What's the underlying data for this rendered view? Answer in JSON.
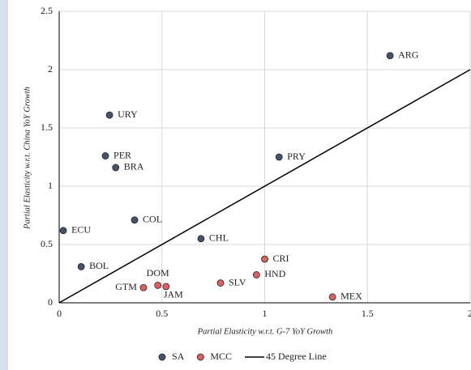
{
  "chart_data": {
    "type": "scatter",
    "xlabel": "Partial Elasticity w.r.t. G-7 YoY Growth",
    "ylabel": "Partial Elasticity w.r.t. China YoY Growth",
    "xlim": [
      0,
      2
    ],
    "ylim": [
      0,
      2.5
    ],
    "xticks": [
      0,
      0.5,
      1,
      1.5,
      2
    ],
    "yticks": [
      0,
      0.5,
      1,
      1.5,
      2,
      2.5
    ],
    "grid": true,
    "legend": "bottom",
    "series": [
      {
        "name": "SA",
        "color": "#44546a",
        "labels": [
          "ARG",
          "URY",
          "PER",
          "BRA",
          "PRY",
          "COL",
          "ECU",
          "CHL",
          "BOL"
        ],
        "x": [
          1.61,
          0.245,
          0.225,
          0.275,
          1.07,
          0.367,
          0.02,
          0.69,
          0.107
        ],
        "values": [
          2.12,
          1.61,
          1.26,
          1.16,
          1.25,
          0.71,
          0.62,
          0.55,
          0.31
        ]
      },
      {
        "name": "MCC",
        "color": "#e06060",
        "labels": [
          "CRI",
          "HND",
          "MEX",
          "DOM",
          "GTM",
          "JAM",
          "SLV"
        ],
        "x": [
          1.0,
          0.96,
          1.33,
          0.48,
          0.41,
          0.52,
          0.785
        ],
        "values": [
          0.375,
          0.24,
          0.05,
          0.15,
          0.13,
          0.14,
          0.17
        ]
      },
      {
        "name": "45 Degree Line",
        "color": "#000000",
        "type": "line",
        "x": [
          0,
          2
        ],
        "values": [
          0,
          2
        ]
      }
    ]
  }
}
